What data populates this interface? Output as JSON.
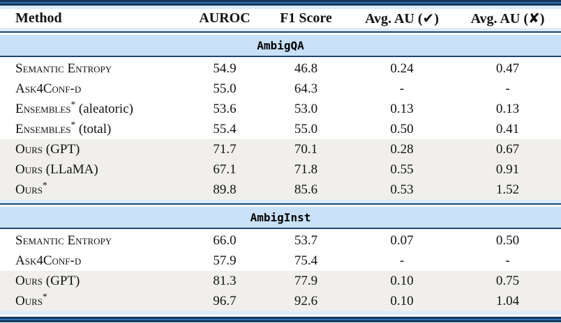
{
  "table": {
    "columns": {
      "method": "Method",
      "auroc": "AUROC",
      "f1": "F1 Score",
      "au_correct": "Avg. AU (✔)",
      "au_incorrect": "Avg. AU (✘)"
    },
    "icons": {
      "check": "✔",
      "cross": "✘"
    },
    "colors": {
      "rule_navy": "#16365c",
      "rule_blue": "#2e75b6",
      "hairline_navy": "#1b4476",
      "section_band_blue": "#c9e1f8",
      "strip_blue": "#dcebfb",
      "highlight_gray": "#f0efec"
    },
    "sections": [
      {
        "title": "AmbigQA",
        "rows": [
          {
            "method": "Semantic Entropy",
            "auroc": "54.9",
            "f1": "46.8",
            "au_correct": "0.24",
            "au_incorrect": "0.47"
          },
          {
            "method": "Ask4Conf-d",
            "auroc": "55.0",
            "f1": "64.3",
            "au_correct": "-",
            "au_incorrect": "-"
          },
          {
            "method": "Ensembles",
            "sup": "*",
            "note": " (aleatoric)",
            "auroc": "53.6",
            "f1": "53.0",
            "au_correct": "0.13",
            "au_incorrect": "0.13"
          },
          {
            "method": "Ensembles",
            "sup": "*",
            "note": " (total)",
            "auroc": "55.4",
            "f1": "55.0",
            "au_correct": "0.50",
            "au_incorrect": "0.41"
          },
          {
            "method": "Ours",
            "note": " (GPT)",
            "auroc": "71.7",
            "f1": "70.1",
            "au_correct": "0.28",
            "au_incorrect": "0.67"
          },
          {
            "method": "Ours",
            "note": " (LLaMA)",
            "auroc": "67.1",
            "f1": "71.8",
            "au_correct": "0.55",
            "au_incorrect": "0.91"
          },
          {
            "method": "Ours",
            "sup": "*",
            "auroc": "89.8",
            "f1": "85.6",
            "au_correct": "0.53",
            "au_incorrect": "1.52"
          }
        ]
      },
      {
        "title": "AmbigInst",
        "rows": [
          {
            "method": "Semantic Entropy",
            "auroc": "66.0",
            "f1": "53.7",
            "au_correct": "0.07",
            "au_incorrect": "0.50"
          },
          {
            "method": "Ask4Conf-d",
            "auroc": "57.9",
            "f1": "75.4",
            "au_correct": "-",
            "au_incorrect": "-"
          },
          {
            "method": "Ours",
            "note": " (GPT)",
            "auroc": "81.3",
            "f1": "77.9",
            "au_correct": "0.10",
            "au_incorrect": "0.75"
          },
          {
            "method": "Ours",
            "sup": "*",
            "auroc": "96.7",
            "f1": "92.6",
            "au_correct": "0.10",
            "au_incorrect": "1.04"
          }
        ]
      }
    ]
  }
}
